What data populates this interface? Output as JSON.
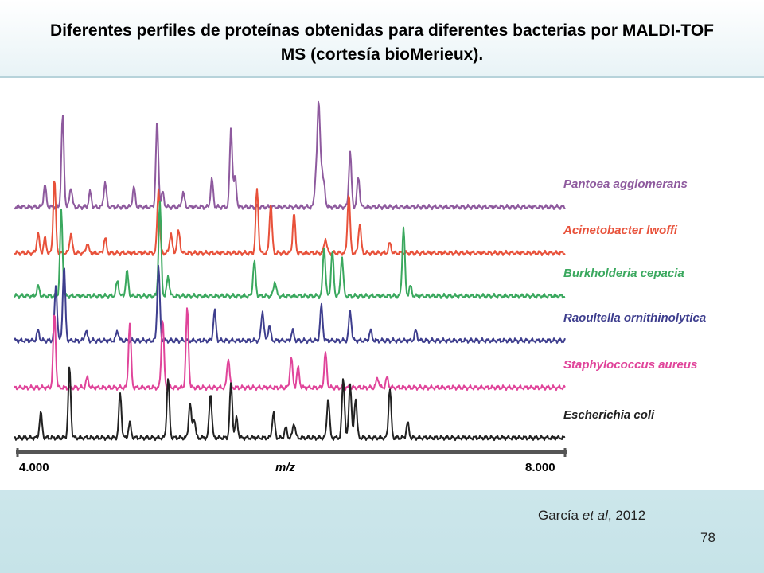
{
  "slide": {
    "title": "Diferentes perfiles de proteínas obtenidas para diferentes bacterias por MALDI-TOF MS (cortesía bioMerieux).",
    "citation_author": "García ",
    "citation_etal": "et al",
    "citation_year": ", 2012",
    "page_number": "78"
  },
  "chart_data": {
    "type": "line",
    "title": "",
    "xlabel": "m/z",
    "ylabel": "",
    "xlim": [
      4000,
      8000
    ],
    "x_tick_labels": [
      "4.000",
      "8.000"
    ],
    "grid": false,
    "legend": "labels at right end of each trace",
    "series": [
      {
        "name": "Pantoea agglomerans",
        "color": "#8e5a9e",
        "peaks": [
          [
            4200,
            0.22
          ],
          [
            4330,
            0.92
          ],
          [
            4390,
            0.2
          ],
          [
            4530,
            0.15
          ],
          [
            4640,
            0.25
          ],
          [
            4850,
            0.2
          ],
          [
            5020,
            0.85
          ],
          [
            5060,
            0.15
          ],
          [
            5210,
            0.15
          ],
          [
            5420,
            0.28
          ],
          [
            5560,
            0.8
          ],
          [
            5590,
            0.3
          ],
          [
            6200,
            1.0
          ],
          [
            6220,
            0.35
          ],
          [
            6180,
            0.3
          ],
          [
            6240,
            0.2
          ],
          [
            6430,
            0.55
          ],
          [
            6490,
            0.3
          ]
        ]
      },
      {
        "name": "Acinetobacter lwoffi",
        "color": "#e8513a",
        "peaks": [
          [
            4150,
            0.2
          ],
          [
            4200,
            0.15
          ],
          [
            4270,
            0.75
          ],
          [
            4390,
            0.2
          ],
          [
            4510,
            0.1
          ],
          [
            4640,
            0.15
          ],
          [
            5030,
            0.65
          ],
          [
            5120,
            0.2
          ],
          [
            5170,
            0.1
          ],
          [
            5180,
            0.15
          ],
          [
            5750,
            0.65
          ],
          [
            5850,
            0.5
          ],
          [
            6020,
            0.4
          ],
          [
            6250,
            0.15
          ],
          [
            6420,
            0.6
          ],
          [
            6500,
            0.3
          ],
          [
            6720,
            0.1
          ]
        ]
      },
      {
        "name": "Burkholderia cepacia",
        "color": "#3aa85e",
        "peaks": [
          [
            4150,
            0.1
          ],
          [
            4320,
            0.85
          ],
          [
            4730,
            0.15
          ],
          [
            4800,
            0.25
          ],
          [
            5040,
            0.95
          ],
          [
            5100,
            0.2
          ],
          [
            5730,
            0.35
          ],
          [
            5880,
            0.15
          ],
          [
            6240,
            0.5
          ],
          [
            6300,
            0.45
          ],
          [
            6370,
            0.4
          ],
          [
            6820,
            0.7
          ],
          [
            6870,
            0.1
          ]
        ]
      },
      {
        "name": "Raoultella ornithinolytica",
        "color": "#3e3e8e",
        "peaks": [
          [
            4150,
            0.1
          ],
          [
            4280,
            0.55
          ],
          [
            4340,
            0.75
          ],
          [
            4500,
            0.1
          ],
          [
            4730,
            0.1
          ],
          [
            5030,
            0.75
          ],
          [
            5440,
            0.3
          ],
          [
            5790,
            0.3
          ],
          [
            5840,
            0.15
          ],
          [
            6010,
            0.1
          ],
          [
            6220,
            0.35
          ],
          [
            6430,
            0.3
          ],
          [
            6580,
            0.1
          ],
          [
            6910,
            0.1
          ]
        ]
      },
      {
        "name": "Staphylococcus aureus",
        "color": "#e0449a",
        "peaks": [
          [
            4270,
            0.75
          ],
          [
            4510,
            0.1
          ],
          [
            4820,
            0.65
          ],
          [
            5060,
            0.7
          ],
          [
            5240,
            0.8
          ],
          [
            5540,
            0.3
          ],
          [
            6000,
            0.3
          ],
          [
            6050,
            0.2
          ],
          [
            6250,
            0.35
          ],
          [
            6630,
            0.1
          ],
          [
            6700,
            0.1
          ]
        ]
      },
      {
        "name": "Escherichia coli",
        "color": "#222222",
        "peaks": [
          [
            4170,
            0.25
          ],
          [
            4380,
            0.7
          ],
          [
            4750,
            0.45
          ],
          [
            4820,
            0.15
          ],
          [
            5100,
            0.6
          ],
          [
            5260,
            0.35
          ],
          [
            5290,
            0.2
          ],
          [
            5410,
            0.45
          ],
          [
            5560,
            0.55
          ],
          [
            5600,
            0.2
          ],
          [
            5870,
            0.25
          ],
          [
            5960,
            0.1
          ],
          [
            6020,
            0.15
          ],
          [
            6270,
            0.4
          ],
          [
            6380,
            0.6
          ],
          [
            6430,
            0.55
          ],
          [
            6470,
            0.4
          ],
          [
            6720,
            0.5
          ],
          [
            6850,
            0.15
          ]
        ]
      }
    ]
  }
}
